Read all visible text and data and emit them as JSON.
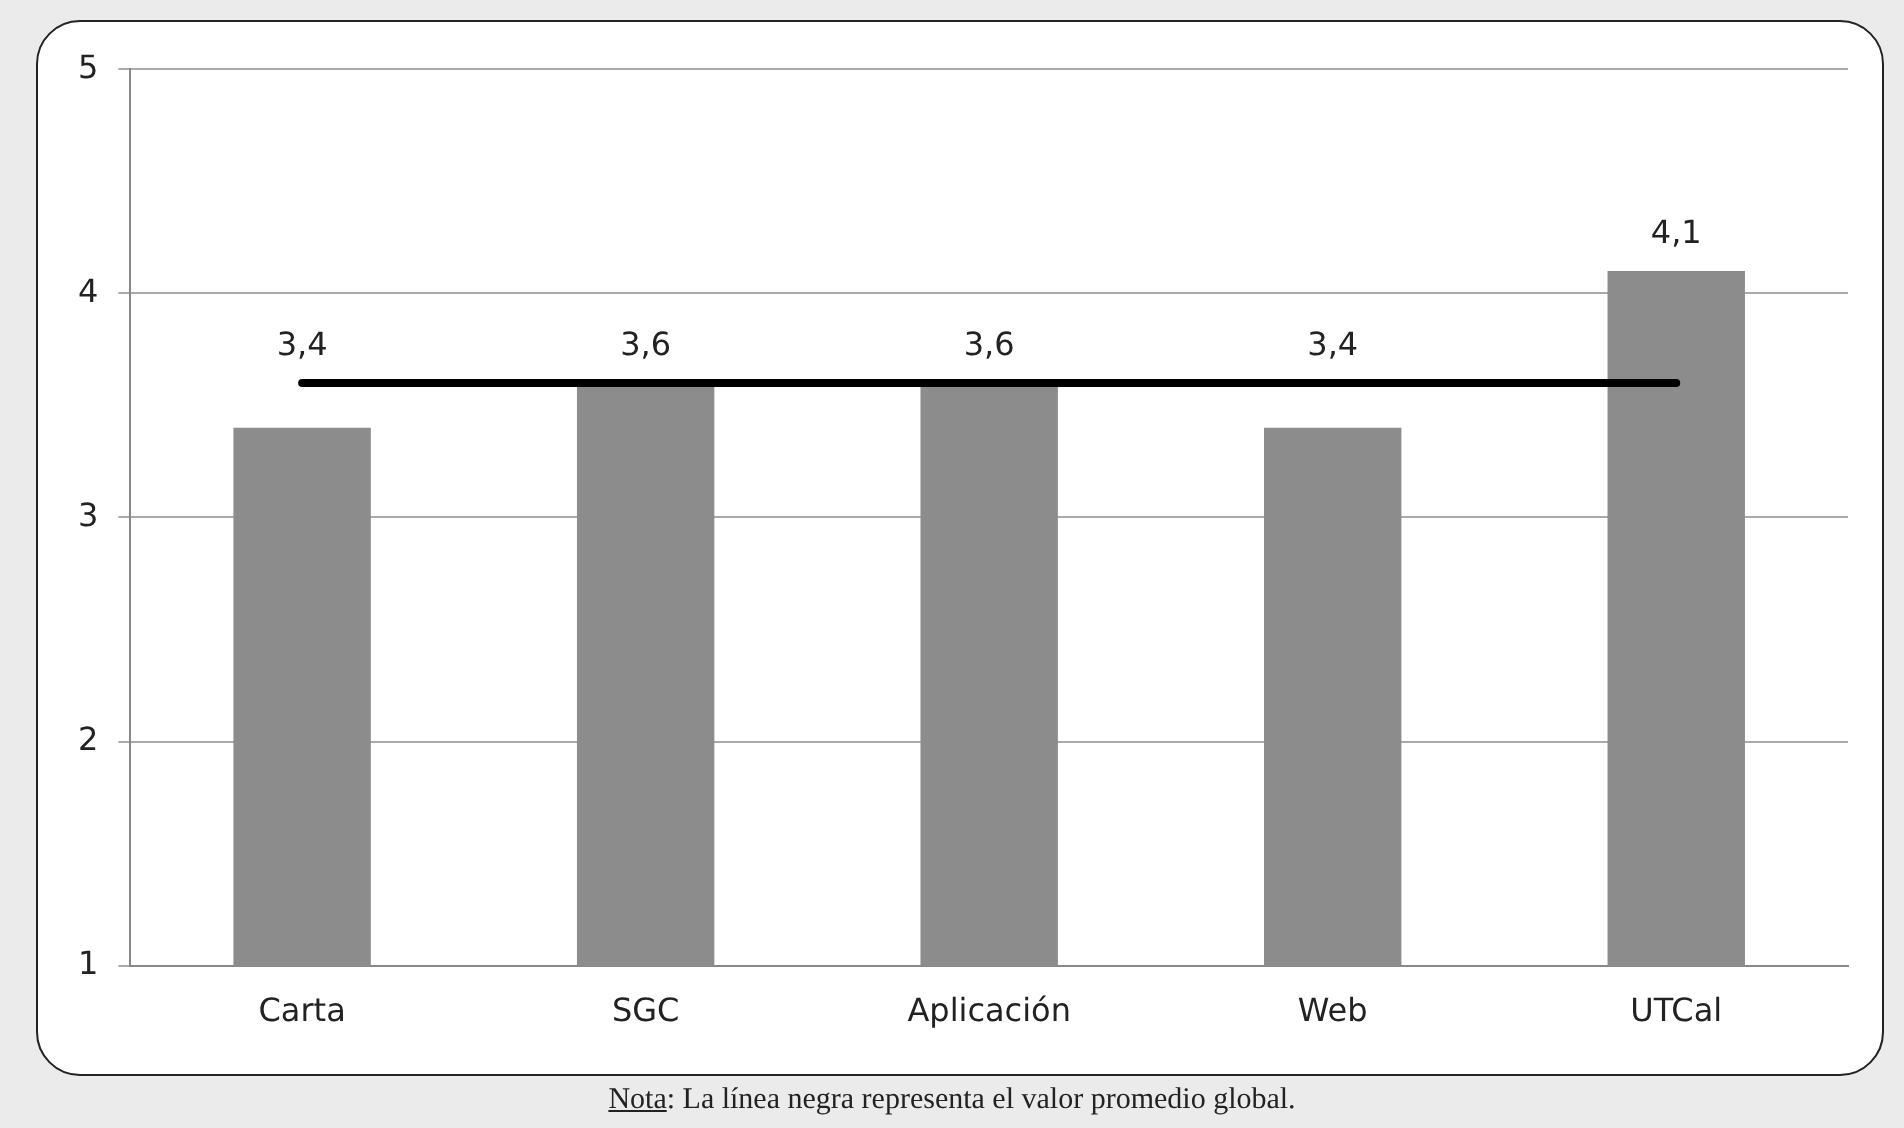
{
  "chart_data": {
    "type": "bar",
    "categories": [
      "Carta",
      "SGC",
      "Aplicación",
      "Web",
      "UTCal"
    ],
    "values": [
      3.4,
      3.6,
      3.6,
      3.4,
      4.1
    ],
    "color": "#8c8c8c",
    "ylim": [
      1,
      5
    ],
    "yticks": [
      1,
      2,
      3,
      4,
      5
    ],
    "grid": "y",
    "value_labels": [
      "3,4",
      "3,6",
      "3,6",
      "3,4",
      "4,1"
    ],
    "legend": false,
    "ref_lines": [
      {
        "axis": "y",
        "value": 3.6,
        "color": "#000000"
      }
    ],
    "annotations": [
      "Nota: La línea negra representa el valor promedio global."
    ]
  }
}
